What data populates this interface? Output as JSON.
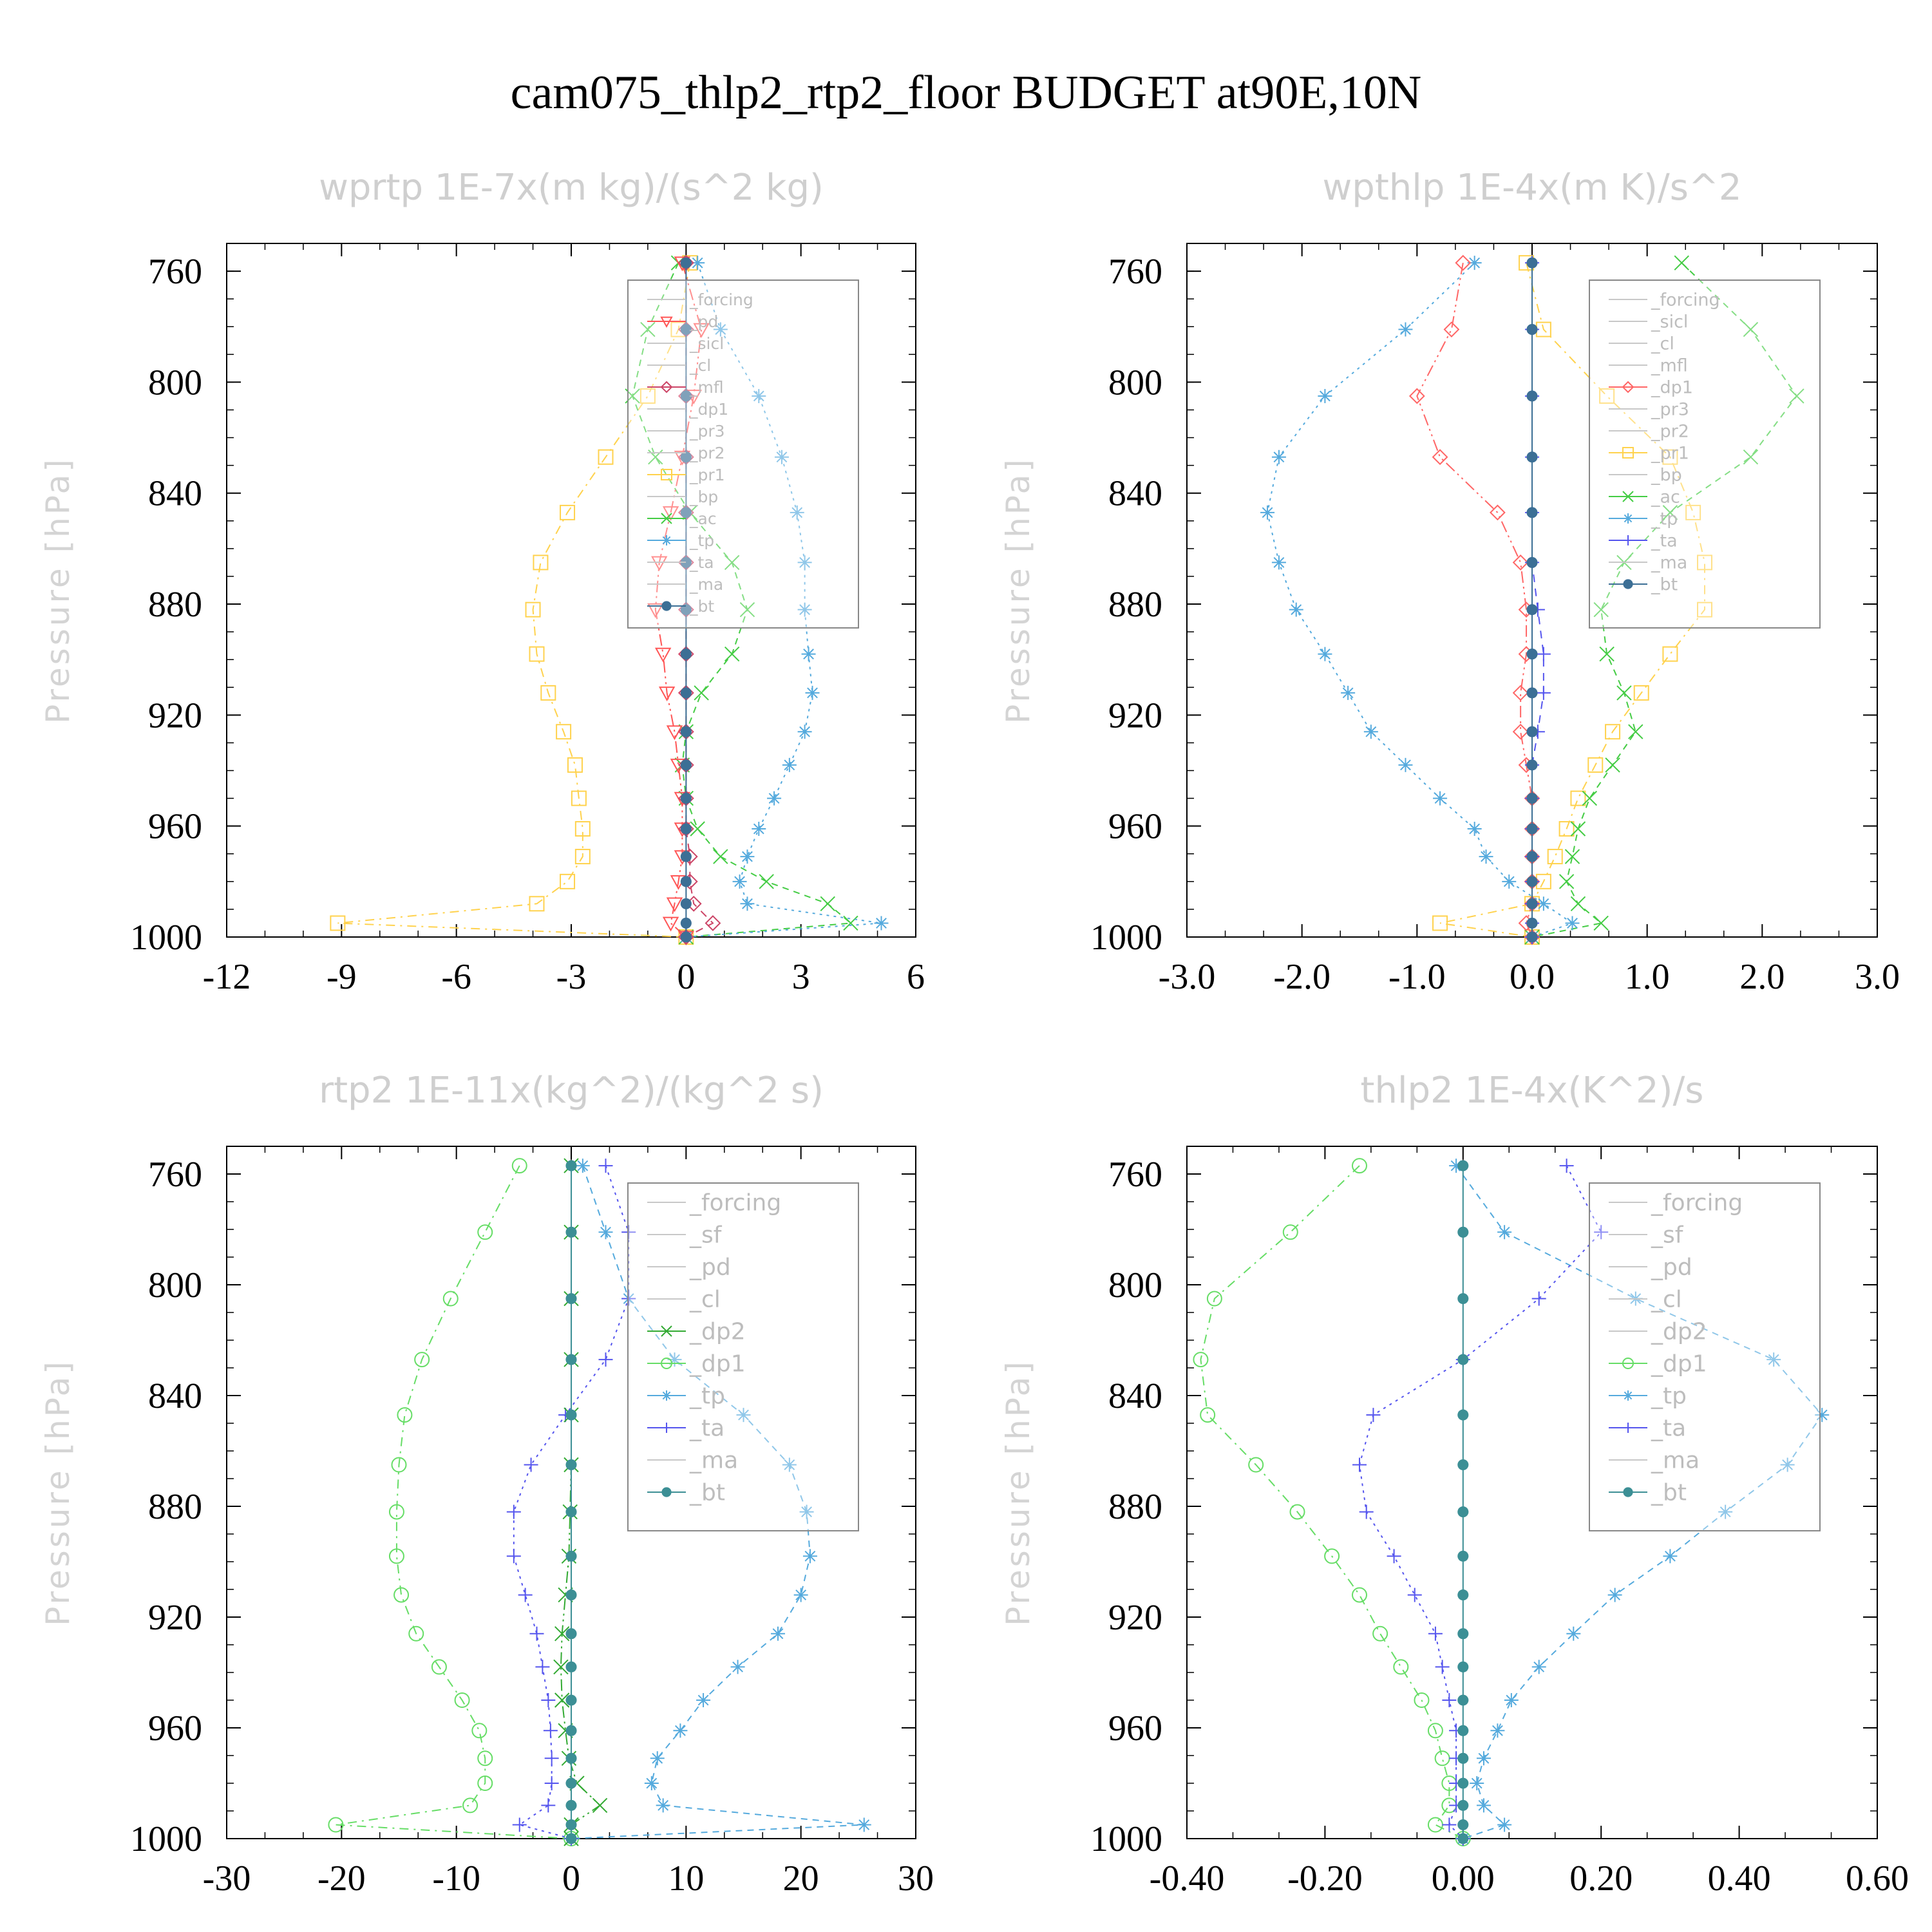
{
  "title": "cam075_thlp2_rtp2_floor  BUDGET at90E,10N",
  "chart_data": [
    {
      "type": "line",
      "title": "wprtp  1E-7x(m kg)/(s^2 kg)",
      "ylabel": "Pressure [hPa]",
      "xlim": [
        -12,
        6
      ],
      "xticks": [
        "-12",
        "-9",
        "-6",
        "-3",
        "0",
        "3",
        "6"
      ],
      "xtick_values": [
        -12,
        -9,
        -6,
        -3,
        0,
        3,
        6
      ],
      "ylim": [
        1000,
        750
      ],
      "yticks": [
        "760",
        "800",
        "840",
        "880",
        "920",
        "960",
        "1000"
      ],
      "ytick_values": [
        760,
        800,
        840,
        880,
        920,
        960,
        1000
      ],
      "levels": [
        757,
        781,
        805,
        827,
        847,
        865,
        882,
        898,
        912,
        926,
        938,
        950,
        961,
        971,
        980,
        988,
        995,
        1000
      ],
      "legend": [
        "_forcing",
        "_pd",
        "_sicl",
        "_cl",
        "_mfl",
        "_dp1",
        "_pr3",
        "_pr2",
        "_pr1",
        "_bp",
        "_ac",
        "_tp",
        "_ta",
        "_ma",
        "_bt"
      ],
      "series": [
        {
          "name": "_pr1",
          "color": "#ffd24d",
          "marker": "square",
          "values": [
            0.1,
            -0.2,
            -1.0,
            -2.1,
            -3.1,
            -3.8,
            -4.0,
            -3.9,
            -3.6,
            -3.2,
            -2.9,
            -2.8,
            -2.7,
            -2.7,
            -3.1,
            -3.9,
            -9.1,
            0
          ]
        },
        {
          "name": "_ac",
          "color": "#44cc44",
          "marker": "x",
          "values": [
            -0.2,
            -1.0,
            -1.4,
            -0.8,
            0.1,
            1.2,
            1.6,
            1.2,
            0.4,
            0.0,
            -0.1,
            0.0,
            0.3,
            0.9,
            2.1,
            3.7,
            4.3,
            0
          ]
        },
        {
          "name": "_tp",
          "color": "#55aadd",
          "marker": "star",
          "values": [
            0.3,
            0.9,
            1.9,
            2.5,
            2.9,
            3.1,
            3.1,
            3.2,
            3.3,
            3.1,
            2.7,
            2.3,
            1.9,
            1.6,
            1.4,
            1.6,
            5.1,
            0
          ]
        },
        {
          "name": "_pd",
          "color": "#ff5555",
          "marker": "triangle-down",
          "values": [
            -0.1,
            0.4,
            0.2,
            -0.1,
            -0.4,
            -0.7,
            -0.8,
            -0.6,
            -0.5,
            -0.3,
            -0.2,
            -0.1,
            -0.1,
            -0.1,
            -0.2,
            -0.3,
            -0.4,
            0
          ]
        },
        {
          "name": "_mfl",
          "color": "#cc4466",
          "marker": "diamond",
          "values": [
            0,
            0,
            0,
            0,
            0,
            0,
            0,
            0,
            0,
            0,
            0,
            0,
            0,
            0.1,
            0.1,
            0.2,
            0.7,
            0
          ]
        },
        {
          "name": "_bt",
          "color": "#3c6f95",
          "marker": "dot",
          "values": [
            0,
            0,
            0,
            0,
            0,
            0,
            0,
            0,
            0,
            0,
            0,
            0,
            0,
            0,
            0,
            0,
            0,
            0
          ]
        }
      ]
    },
    {
      "type": "line",
      "title": "wpthlp  1E-4x(m K)/s^2",
      "ylabel": "Pressure [hPa]",
      "xlim": [
        -3.0,
        3.0
      ],
      "xticks": [
        "-3.0",
        "-2.0",
        "-1.0",
        "0.0",
        "1.0",
        "2.0",
        "3.0"
      ],
      "xtick_values": [
        -3,
        -2,
        -1,
        0,
        1,
        2,
        3
      ],
      "ylim": [
        1000,
        750
      ],
      "yticks": [
        "760",
        "800",
        "840",
        "880",
        "920",
        "960",
        "1000"
      ],
      "ytick_values": [
        760,
        800,
        840,
        880,
        920,
        960,
        1000
      ],
      "levels": [
        757,
        781,
        805,
        827,
        847,
        865,
        882,
        898,
        912,
        926,
        938,
        950,
        961,
        971,
        980,
        988,
        995,
        1000
      ],
      "legend": [
        "_forcing",
        "_sicl",
        "_cl",
        "_mfl",
        "_dp1",
        "_pr3",
        "_pr2",
        "_pr1",
        "_bp",
        "_ac",
        "_tp",
        "_ta",
        "_ma",
        "_bt"
      ],
      "series": [
        {
          "name": "_pr1",
          "color": "#ffd24d",
          "marker": "square",
          "values": [
            -0.05,
            0.1,
            0.65,
            1.2,
            1.4,
            1.5,
            1.5,
            1.2,
            0.95,
            0.7,
            0.55,
            0.4,
            0.3,
            0.2,
            0.1,
            0.0,
            -0.8,
            0
          ]
        },
        {
          "name": "_ac",
          "color": "#44cc44",
          "marker": "x",
          "values": [
            1.3,
            1.9,
            2.3,
            1.9,
            1.2,
            0.8,
            0.6,
            0.65,
            0.8,
            0.9,
            0.7,
            0.5,
            0.4,
            0.35,
            0.3,
            0.4,
            0.6,
            0
          ]
        },
        {
          "name": "_tp",
          "color": "#55aadd",
          "marker": "star",
          "values": [
            -0.5,
            -1.1,
            -1.8,
            -2.2,
            -2.3,
            -2.2,
            -2.05,
            -1.8,
            -1.6,
            -1.4,
            -1.1,
            -0.8,
            -0.5,
            -0.4,
            -0.2,
            0.1,
            0.35,
            0
          ]
        },
        {
          "name": "_dp1",
          "color": "#ff6666",
          "marker": "diamond",
          "values": [
            -0.6,
            -0.7,
            -1.0,
            -0.8,
            -0.3,
            -0.1,
            -0.05,
            -0.05,
            -0.1,
            -0.1,
            -0.05,
            0,
            0,
            0,
            0,
            0,
            -0.05,
            0
          ]
        },
        {
          "name": "_ta",
          "color": "#5555ee",
          "marker": "plus",
          "values": [
            0,
            0,
            0,
            0,
            0,
            0,
            0.05,
            0.1,
            0.1,
            0.05,
            0,
            0,
            0,
            0,
            0,
            0,
            0,
            0
          ]
        },
        {
          "name": "_bt",
          "color": "#3c6f95",
          "marker": "dot",
          "values": [
            0,
            0,
            0,
            0,
            0,
            0,
            0,
            0,
            0,
            0,
            0,
            0,
            0,
            0,
            0,
            0,
            0,
            0
          ]
        }
      ]
    },
    {
      "type": "line",
      "title": "rtp2  1E-11x(kg^2)/(kg^2 s)",
      "ylabel": "Pressure [hPa]",
      "xlim": [
        -30,
        30
      ],
      "xticks": [
        "-30",
        "-20",
        "-10",
        "0",
        "10",
        "20",
        "30"
      ],
      "xtick_values": [
        -30,
        -20,
        -10,
        0,
        10,
        20,
        30
      ],
      "ylim": [
        1000,
        750
      ],
      "yticks": [
        "760",
        "800",
        "840",
        "880",
        "920",
        "960",
        "1000"
      ],
      "ytick_values": [
        760,
        800,
        840,
        880,
        920,
        960,
        1000
      ],
      "levels": [
        757,
        781,
        805,
        827,
        847,
        865,
        882,
        898,
        912,
        926,
        938,
        950,
        961,
        971,
        980,
        988,
        995,
        1000
      ],
      "legend": [
        "_forcing",
        "_sf",
        "_pd",
        "_cl",
        "_dp2",
        "_dp1",
        "_tp",
        "_ta",
        "_ma",
        "_bt"
      ],
      "series": [
        {
          "name": "_dp1",
          "color": "#66dd66",
          "marker": "circle",
          "values": [
            -4.5,
            -7.5,
            -10.5,
            -13,
            -14.5,
            -15,
            -15.2,
            -15.2,
            -14.8,
            -13.5,
            -11.5,
            -9.5,
            -8,
            -7.5,
            -7.5,
            -8.8,
            -20.5,
            0
          ]
        },
        {
          "name": "_tp",
          "color": "#55aadd",
          "marker": "star",
          "values": [
            1,
            3,
            5,
            9,
            15,
            19,
            20.5,
            20.8,
            20,
            18,
            14.5,
            11.5,
            9.5,
            7.5,
            7,
            8,
            25.5,
            0
          ]
        },
        {
          "name": "_ta",
          "color": "#5555ee",
          "marker": "plus",
          "values": [
            3,
            5,
            5,
            3,
            -0.5,
            -3.5,
            -5,
            -5,
            -4,
            -3,
            -2.5,
            -2,
            -1.8,
            -1.7,
            -1.7,
            -2,
            -4.5,
            0
          ]
        },
        {
          "name": "_dp2",
          "color": "#33aa33",
          "marker": "x",
          "values": [
            0,
            0,
            0,
            0,
            0,
            0,
            -0.1,
            -0.2,
            -0.5,
            -0.8,
            -0.9,
            -0.8,
            -0.5,
            -0.2,
            0.5,
            2.5,
            0,
            0
          ]
        },
        {
          "name": "_bt",
          "color": "#3c8f95",
          "marker": "dot",
          "values": [
            0,
            0,
            0,
            0,
            0,
            0,
            0,
            0,
            0,
            0,
            0,
            0,
            0,
            0,
            0,
            0,
            0,
            0
          ]
        }
      ]
    },
    {
      "type": "line",
      "title": "thlp2  1E-4x(K^2)/s",
      "ylabel": "Pressure [hPa]",
      "xlim": [
        -0.4,
        0.6
      ],
      "xticks": [
        "-0.40",
        "-0.20",
        "0.00",
        "0.20",
        "0.40",
        "0.60"
      ],
      "xtick_values": [
        -0.4,
        -0.2,
        0,
        0.2,
        0.4,
        0.6
      ],
      "ylim": [
        1000,
        750
      ],
      "yticks": [
        "760",
        "800",
        "840",
        "880",
        "920",
        "960",
        "1000"
      ],
      "ytick_values": [
        760,
        800,
        840,
        880,
        920,
        960,
        1000
      ],
      "levels": [
        757,
        781,
        805,
        827,
        847,
        865,
        882,
        898,
        912,
        926,
        938,
        950,
        961,
        971,
        980,
        988,
        995,
        1000
      ],
      "legend": [
        "_forcing",
        "_sf",
        "_pd",
        "_cl",
        "_dp2",
        "_dp1",
        "_tp",
        "_ta",
        "_ma",
        "_bt"
      ],
      "series": [
        {
          "name": "_dp1",
          "color": "#66dd66",
          "marker": "circle",
          "values": [
            -0.15,
            -0.25,
            -0.36,
            -0.38,
            -0.37,
            -0.3,
            -0.24,
            -0.19,
            -0.15,
            -0.12,
            -0.09,
            -0.06,
            -0.04,
            -0.03,
            -0.02,
            -0.02,
            -0.04,
            0
          ]
        },
        {
          "name": "_tp",
          "color": "#55aadd",
          "marker": "star",
          "values": [
            -0.01,
            0.06,
            0.25,
            0.45,
            0.52,
            0.47,
            0.38,
            0.3,
            0.22,
            0.16,
            0.11,
            0.07,
            0.05,
            0.03,
            0.02,
            0.03,
            0.06,
            0
          ]
        },
        {
          "name": "_ta",
          "color": "#5555ee",
          "marker": "plus",
          "values": [
            0.15,
            0.2,
            0.11,
            0.0,
            -0.13,
            -0.15,
            -0.14,
            -0.1,
            -0.07,
            -0.04,
            -0.03,
            -0.02,
            -0.01,
            -0.01,
            -0.01,
            -0.01,
            -0.02,
            0
          ]
        },
        {
          "name": "_bt",
          "color": "#3c8f95",
          "marker": "dot",
          "values": [
            0,
            0,
            0,
            0,
            0,
            0,
            0,
            0,
            0,
            0,
            0,
            0,
            0,
            0,
            0,
            0,
            0,
            0
          ]
        }
      ]
    }
  ]
}
